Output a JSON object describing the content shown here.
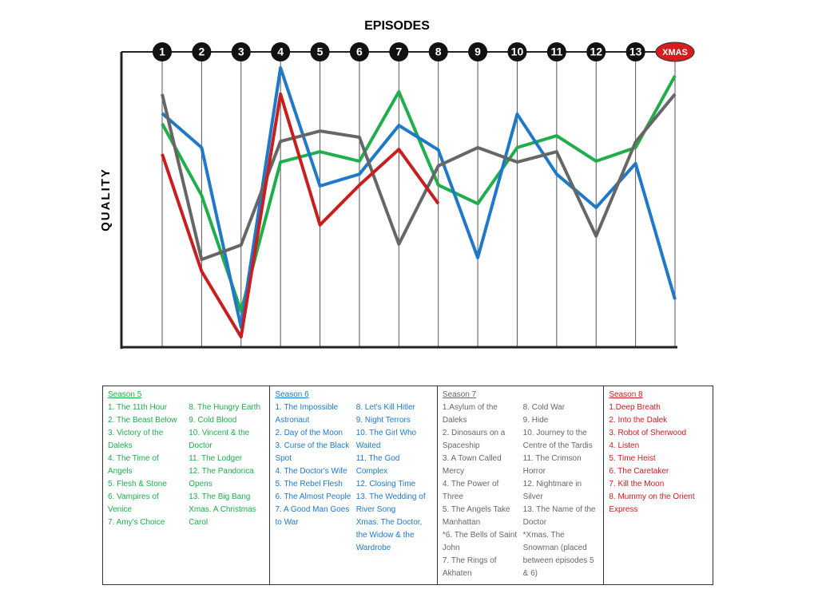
{
  "chart_data": {
    "type": "line",
    "title": "EPISODES",
    "y_label": "QUALITY",
    "categories": [
      "1",
      "2",
      "3",
      "4",
      "5",
      "6",
      "7",
      "8",
      "9",
      "10",
      "11",
      "12",
      "13",
      "XMAS"
    ],
    "ylim": [
      0,
      100
    ],
    "series": [
      {
        "name": "Season 5",
        "color": "#1fae4b",
        "values": [
          75.7,
          51.4,
          12.2,
          62.7,
          66.2,
          63,
          86.5,
          54.9,
          48.6,
          67.6,
          71.6,
          63,
          67.6,
          91.9
        ]
      },
      {
        "name": "Season 6",
        "color": "#1f78c8",
        "values": [
          79.2,
          67.6,
          6.8,
          94.6,
          54.6,
          58.6,
          75.1,
          66.8,
          30.3,
          78.9,
          58.6,
          47.3,
          62.2,
          16.2
        ]
      },
      {
        "name": "Season 7",
        "color": "#666666",
        "values": [
          85.7,
          29.7,
          34.6,
          69.7,
          73.2,
          71.1,
          34.9,
          61.4,
          67.6,
          62.7,
          66.2,
          37.6,
          69.5,
          85.7
        ]
      },
      {
        "name": "Season 8",
        "color": "#c81e1e",
        "values": [
          65.4,
          25.7,
          3.5,
          85.7,
          41.4,
          54.9,
          67,
          48.6,
          null,
          null,
          null,
          null,
          null,
          null
        ]
      }
    ]
  },
  "table": {
    "columns": [
      {
        "lists": [
          [
            "1. The 11th Hour",
            "2. The Beast Below",
            "3. Victory of the Daleks",
            "4. The Time of Angels",
            "5. Flesh & Stone",
            "6. Vampires of Venice",
            "7. Amy's Choice"
          ],
          [
            "8. The Hungry Earth",
            "9. Cold Blood",
            "10. Vincent & the Doctor",
            "11. The Lodger",
            "12. The Pandorica Opens",
            "13. The Big Bang",
            "Xmas. A Christmas Carol"
          ]
        ]
      },
      {
        "lists": [
          [
            "1. The Impossible Astronaut",
            "2. Day of the Moon",
            "3. Curse of the Black Spot",
            "4. The Doctor's Wife",
            "5. The Rebel Flesh",
            "6. The Almost People",
            "7. A Good Man Goes to War"
          ],
          [
            "8. Let's Kill Hitler",
            "9. Night Terrors",
            "10. The Girl Who Waited",
            "11. The God Complex",
            "12. Closing Time",
            "13. The Wedding of River Song",
            "Xmas. The Doctor, the Widow & the Wardrobe"
          ]
        ]
      },
      {
        "lists": [
          [
            "1.Asylum of the Daleks",
            "2. Dinosaurs on a Spaceship",
            "3. A Town Called Mercy",
            "4. The Power of Three",
            "5. The Angels Take Manhattan",
            "*6. The Bells of Saint John",
            "7. The Rings of Akhaten"
          ],
          [
            "8. Cold War",
            "9. Hide",
            "10. Journey to the Centre of the Tardis",
            "11. The Crimson Horror",
            "12. Nightmare in Silver",
            "13. The Name of the Doctor",
            "*Xmas. The Snowman (placed between episodes 5 & 6)"
          ]
        ]
      },
      {
        "lists": [
          [
            "1.Deep Breath",
            "2. Into the Dalek",
            "3. Robot of Sherwood",
            "4. Listen",
            "5. Time Heist",
            "6. The Caretaker",
            "7. Kill the Moon",
            "8. Mummy on the Orient Express"
          ]
        ]
      }
    ]
  }
}
